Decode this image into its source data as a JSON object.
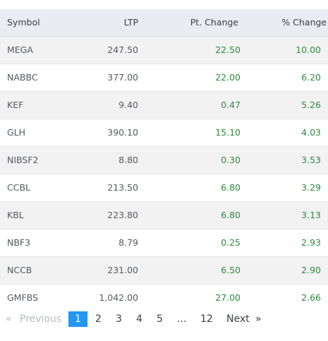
{
  "table": {
    "headers": {
      "symbol": "Symbol",
      "ltp": "LTP",
      "pt_change": "Pt. Change",
      "pct_change": "% Change"
    },
    "rows": [
      {
        "symbol": "MEGA",
        "ltp": "247.50",
        "pt_change": "22.50",
        "pct_change": "10.00"
      },
      {
        "symbol": "NABBC",
        "ltp": "377.00",
        "pt_change": "22.00",
        "pct_change": "6.20"
      },
      {
        "symbol": "KEF",
        "ltp": "9.40",
        "pt_change": "0.47",
        "pct_change": "5.26"
      },
      {
        "symbol": "GLH",
        "ltp": "390.10",
        "pt_change": "15.10",
        "pct_change": "4.03"
      },
      {
        "symbol": "NIBSF2",
        "ltp": "8.80",
        "pt_change": "0.30",
        "pct_change": "3.53"
      },
      {
        "symbol": "CCBL",
        "ltp": "213.50",
        "pt_change": "6.80",
        "pct_change": "3.29"
      },
      {
        "symbol": "KBL",
        "ltp": "223.80",
        "pt_change": "6.80",
        "pct_change": "3.13"
      },
      {
        "symbol": "NBF3",
        "ltp": "8.79",
        "pt_change": "0.25",
        "pct_change": "2.93"
      },
      {
        "symbol": "NCCB",
        "ltp": "231.00",
        "pt_change": "6.50",
        "pct_change": "2.90"
      },
      {
        "symbol": "GMFBS",
        "ltp": "1,042.00",
        "pt_change": "27.00",
        "pct_change": "2.66"
      }
    ]
  },
  "pagination": {
    "first_arrow": "«",
    "previous_label": "Previous",
    "pages": [
      "1",
      "2",
      "3",
      "4",
      "5"
    ],
    "ellipsis": "...",
    "last_page": "12",
    "current_page": "1",
    "next_label": "Next",
    "last_arrow": "»"
  },
  "colors": {
    "positive": "#2e8b3e",
    "active_page": "#2196f3",
    "header_bg": "#e9edf1"
  }
}
